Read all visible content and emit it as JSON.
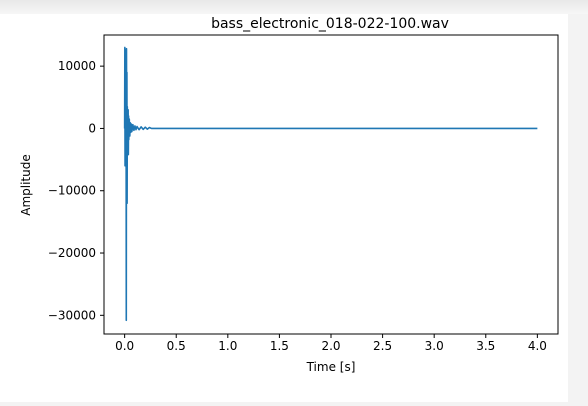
{
  "chart_data": {
    "type": "line",
    "title": "bass_electronic_018-022-100.wav",
    "xlabel": "Time [s]",
    "ylabel": "Amplitude",
    "xlim": [
      -0.2,
      4.2
    ],
    "ylim": [
      -33000,
      15000
    ],
    "x_ticks": [
      0.0,
      0.5,
      1.0,
      1.5,
      2.0,
      2.5,
      3.0,
      3.5,
      4.0
    ],
    "x_tick_labels": [
      "0.0",
      "0.5",
      "1.0",
      "1.5",
      "2.0",
      "2.5",
      "3.0",
      "3.5",
      "4.0"
    ],
    "y_ticks": [
      10000,
      0,
      -10000,
      -20000,
      -30000
    ],
    "y_tick_labels": [
      "10000",
      "0",
      "−10000",
      "−20000",
      "−30000"
    ],
    "grid": false,
    "series": [
      {
        "color": "#1f77b4",
        "x": [
          0.0,
          0.002,
          0.004,
          0.006,
          0.008,
          0.01,
          0.012,
          0.014,
          0.016,
          0.018,
          0.02,
          0.022,
          0.024,
          0.026,
          0.028,
          0.03,
          0.032,
          0.034,
          0.036,
          0.038,
          0.04,
          0.045,
          0.05,
          0.055,
          0.06,
          0.065,
          0.07,
          0.08,
          0.09,
          0.1,
          0.11,
          0.12,
          0.14,
          0.16,
          0.18,
          0.2,
          0.22,
          0.24,
          0.26,
          0.3,
          0.5,
          1.0,
          1.5,
          2.0,
          2.5,
          3.0,
          3.5,
          4.0
        ],
        "y": [
          0,
          13000,
          -6000,
          10000,
          -4000,
          12500,
          -5500,
          6000,
          -30800,
          12800,
          -3000,
          9000,
          -12000,
          3500,
          -2000,
          2500,
          -1500,
          3000,
          -4200,
          2000,
          -1800,
          1500,
          -1200,
          900,
          -600,
          700,
          -500,
          600,
          -300,
          400,
          -200,
          300,
          -200,
          250,
          -150,
          200,
          -120,
          150,
          0,
          0,
          0,
          0,
          0,
          0,
          0,
          0,
          0,
          0
        ]
      }
    ]
  }
}
